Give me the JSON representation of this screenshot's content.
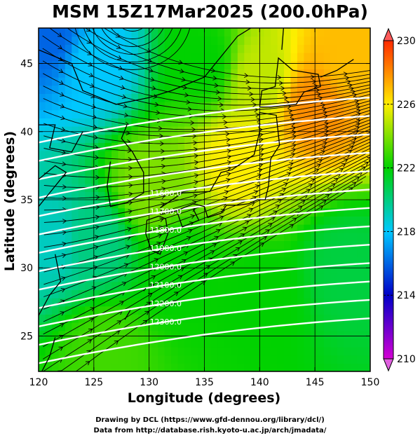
{
  "title": "MSM 15Z17Mar2025 (200.0hPa)",
  "xlabel": "Longitude (degrees)",
  "ylabel": "Latitude  (degrees)",
  "x_ticks": [
    "120",
    "125",
    "130",
    "135",
    "140",
    "145",
    "150"
  ],
  "y_ticks": [
    "25",
    "30",
    "35",
    "40",
    "45"
  ],
  "colorbar_ticks": [
    "230",
    "226",
    "222",
    "218",
    "214",
    "210"
  ],
  "contour_labels": [
    "11600.0",
    "11700.0",
    "11800.0",
    "11900.0",
    "12000.0",
    "12100.0",
    "12200.0",
    "12300.0"
  ],
  "credit": {
    "line1": "Drawing by DCL (https://www.gfd-dennou.org/library/dcl/)",
    "line2": "Data from http://database.rish.kyoto-u.ac.jp/arch/jmadata/"
  },
  "chart_data": {
    "type": "heatmap",
    "title": "MSM 15Z17Mar2025 (200.0hPa)",
    "xlabel": "Longitude (degrees)",
    "ylabel": "Latitude  (degrees)",
    "xlim": [
      120,
      150
    ],
    "ylim": [
      22.4,
      47.6
    ],
    "colorbar": {
      "min": 210,
      "max": 230,
      "ticks": [
        210,
        214,
        218,
        222,
        226,
        230
      ]
    },
    "colors": {
      "cmap": [
        "#d400d4",
        "#0000c8",
        "#00c8ff",
        "#00d200",
        "#ffee00",
        "#ff2a00"
      ],
      "coast": "#000000",
      "contour": "#ffffff",
      "grid": "#000000"
    },
    "temperature_field": [
      {
        "lon": 121,
        "lat": 47,
        "value": 216
      },
      {
        "lon": 125,
        "lat": 45,
        "value": 218
      },
      {
        "lon": 135,
        "lat": 45,
        "value": 222
      },
      {
        "lon": 140,
        "lat": 44,
        "value": 225
      },
      {
        "lon": 145,
        "lat": 42,
        "value": 228
      },
      {
        "lon": 148,
        "lat": 45,
        "value": 227
      },
      {
        "lon": 138,
        "lat": 38,
        "value": 226
      },
      {
        "lon": 130,
        "lat": 36,
        "value": 224
      },
      {
        "lon": 121,
        "lat": 32,
        "value": 219
      },
      {
        "lon": 125,
        "lat": 32,
        "value": 220
      },
      {
        "lon": 133,
        "lat": 30,
        "value": 222
      },
      {
        "lon": 140,
        "lat": 28,
        "value": 222
      },
      {
        "lon": 126,
        "lat": 24,
        "value": 223
      },
      {
        "lon": 148,
        "lat": 30,
        "value": 221
      }
    ],
    "height_contours": [
      11600,
      11700,
      11800,
      11900,
      12000,
      12100,
      12200,
      12300
    ],
    "wind_flow": "westerly jet curving around a trough near 128E 47N"
  }
}
